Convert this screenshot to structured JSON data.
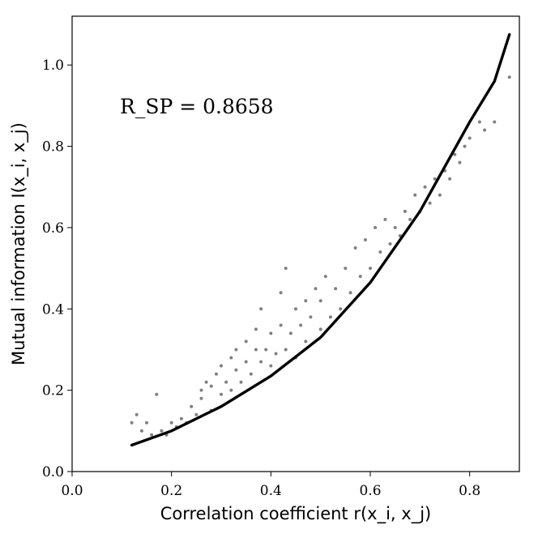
{
  "chart_data": {
    "type": "scatter",
    "title": "",
    "xlabel": "Correlation coefficient r(x_i, x_j)",
    "ylabel": "Mutual information I(x_i, x_j)",
    "xlim": [
      0.0,
      0.9
    ],
    "ylim": [
      0.0,
      1.12
    ],
    "xticks": [
      "0.0",
      "0.2",
      "0.4",
      "0.6",
      "0.8"
    ],
    "yticks": [
      "0.0",
      "0.2",
      "0.4",
      "0.6",
      "0.8",
      "1.0"
    ],
    "grid": false,
    "annotation": "R_SP = 0.8658",
    "colors": {
      "points": "#808080",
      "curve": "#000000"
    },
    "series": [
      {
        "type": "scatter",
        "points": [
          [
            0.12,
            0.12
          ],
          [
            0.13,
            0.14
          ],
          [
            0.14,
            0.1
          ],
          [
            0.15,
            0.12
          ],
          [
            0.16,
            0.09
          ],
          [
            0.17,
            0.19
          ],
          [
            0.18,
            0.1
          ],
          [
            0.19,
            0.09
          ],
          [
            0.2,
            0.12
          ],
          [
            0.21,
            0.11
          ],
          [
            0.22,
            0.13
          ],
          [
            0.23,
            0.12
          ],
          [
            0.24,
            0.16
          ],
          [
            0.25,
            0.14
          ],
          [
            0.26,
            0.2
          ],
          [
            0.26,
            0.18
          ],
          [
            0.27,
            0.22
          ],
          [
            0.28,
            0.15
          ],
          [
            0.28,
            0.21
          ],
          [
            0.29,
            0.24
          ],
          [
            0.3,
            0.19
          ],
          [
            0.3,
            0.26
          ],
          [
            0.31,
            0.22
          ],
          [
            0.32,
            0.28
          ],
          [
            0.32,
            0.2
          ],
          [
            0.33,
            0.25
          ],
          [
            0.33,
            0.3
          ],
          [
            0.34,
            0.22
          ],
          [
            0.35,
            0.27
          ],
          [
            0.35,
            0.32
          ],
          [
            0.36,
            0.24
          ],
          [
            0.37,
            0.3
          ],
          [
            0.37,
            0.35
          ],
          [
            0.38,
            0.27
          ],
          [
            0.38,
            0.4
          ],
          [
            0.39,
            0.3
          ],
          [
            0.4,
            0.26
          ],
          [
            0.4,
            0.34
          ],
          [
            0.41,
            0.29
          ],
          [
            0.42,
            0.36
          ],
          [
            0.42,
            0.44
          ],
          [
            0.43,
            0.3
          ],
          [
            0.43,
            0.5
          ],
          [
            0.44,
            0.34
          ],
          [
            0.45,
            0.4
          ],
          [
            0.45,
            0.28
          ],
          [
            0.46,
            0.36
          ],
          [
            0.47,
            0.42
          ],
          [
            0.47,
            0.32
          ],
          [
            0.48,
            0.38
          ],
          [
            0.49,
            0.45
          ],
          [
            0.5,
            0.35
          ],
          [
            0.5,
            0.42
          ],
          [
            0.51,
            0.48
          ],
          [
            0.52,
            0.38
          ],
          [
            0.53,
            0.45
          ],
          [
            0.54,
            0.4
          ],
          [
            0.55,
            0.5
          ],
          [
            0.56,
            0.44
          ],
          [
            0.57,
            0.55
          ],
          [
            0.58,
            0.48
          ],
          [
            0.59,
            0.57
          ],
          [
            0.6,
            0.5
          ],
          [
            0.61,
            0.6
          ],
          [
            0.62,
            0.54
          ],
          [
            0.63,
            0.62
          ],
          [
            0.64,
            0.56
          ],
          [
            0.65,
            0.6
          ],
          [
            0.66,
            0.58
          ],
          [
            0.67,
            0.64
          ],
          [
            0.68,
            0.62
          ],
          [
            0.69,
            0.68
          ],
          [
            0.7,
            0.64
          ],
          [
            0.71,
            0.7
          ],
          [
            0.72,
            0.66
          ],
          [
            0.73,
            0.72
          ],
          [
            0.74,
            0.68
          ],
          [
            0.75,
            0.74
          ],
          [
            0.76,
            0.72
          ],
          [
            0.77,
            0.78
          ],
          [
            0.78,
            0.76
          ],
          [
            0.79,
            0.8
          ],
          [
            0.8,
            0.82
          ],
          [
            0.82,
            0.86
          ],
          [
            0.83,
            0.84
          ],
          [
            0.85,
            0.86
          ],
          [
            0.88,
            0.97
          ]
        ]
      },
      {
        "type": "line",
        "points": [
          [
            0.12,
            0.065
          ],
          [
            0.2,
            0.1
          ],
          [
            0.3,
            0.16
          ],
          [
            0.4,
            0.235
          ],
          [
            0.5,
            0.33
          ],
          [
            0.6,
            0.465
          ],
          [
            0.7,
            0.64
          ],
          [
            0.75,
            0.75
          ],
          [
            0.8,
            0.86
          ],
          [
            0.85,
            0.96
          ],
          [
            0.88,
            1.075
          ]
        ]
      }
    ]
  }
}
